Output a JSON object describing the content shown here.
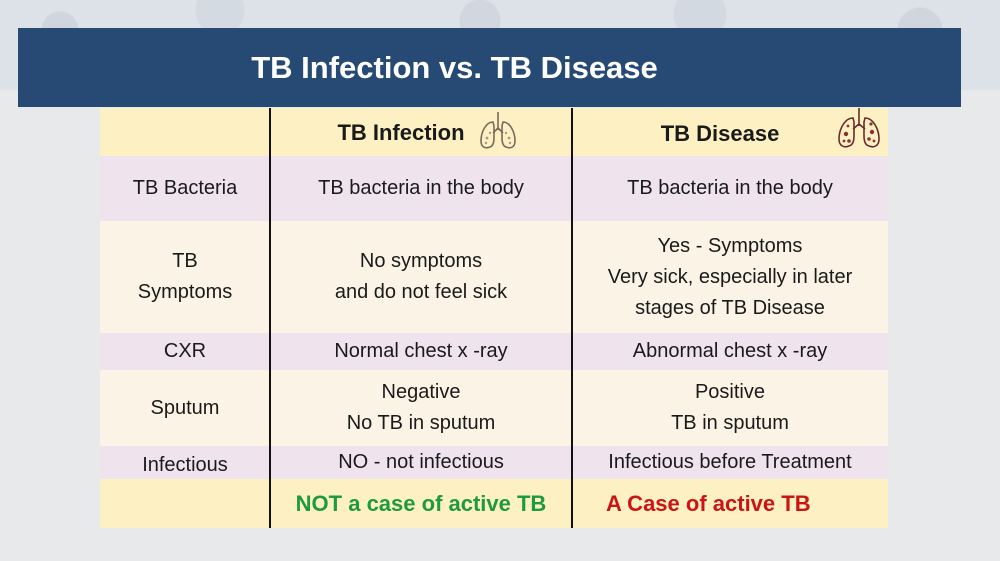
{
  "title": "TB Infection vs. TB Disease",
  "header": {
    "col1": "TB Infection",
    "col2": "TB Disease",
    "col1_icon": "lungs-icon",
    "col2_icon": "diseased-lungs-icon"
  },
  "rows": [
    {
      "label": "TB Bacteria",
      "infection": "TB bacteria in the body",
      "disease": "TB bacteria in the body"
    },
    {
      "label_l1": "TB",
      "label_l2": "Symptoms",
      "infection_l1": "No symptoms",
      "infection_l2": "and do not feel sick",
      "disease_l1": "Yes - Symptoms",
      "disease_l2": "Very sick, especially in later",
      "disease_l3": "stages of TB Disease"
    },
    {
      "label": "CXR",
      "infection": "Normal chest x -ray",
      "disease": "Abnormal chest x -ray"
    },
    {
      "label": "Sputum",
      "infection_l1": "Negative",
      "infection_l2": "No TB in sputum",
      "disease_l1": "Positive",
      "disease_l2": "TB in sputum"
    },
    {
      "label": "Infectious",
      "infection": "NO - not infectious",
      "disease": "Infectious before Treatment"
    }
  ],
  "footer": {
    "infection": "NOT a case of active TB",
    "disease": "A Case of active TB"
  },
  "colors": {
    "title_bg": "#264a73",
    "header_bg": "#fdf1c4",
    "pink_row": "#efe3ee",
    "cream_row": "#fbf4e6",
    "infection_outcome": "#1f9a3e",
    "disease_outcome": "#cc1414"
  }
}
